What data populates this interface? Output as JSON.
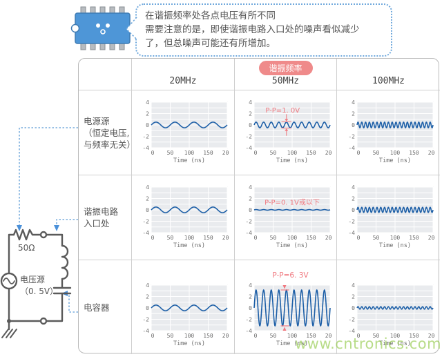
{
  "callout": {
    "lines": [
      "在谐振频率处各点电压有所不同",
      "需要注意的是，即使谐振电路入口处的噪声看似减少",
      "了，但总噪声可能还有所增加。"
    ]
  },
  "table": {
    "resonance_badge": "谐振频率",
    "columns": [
      "20MHz",
      "50MHz",
      "100MHz"
    ],
    "rows": [
      {
        "label_lines": [
          "电源源",
          "（恒定电压,",
          "与频率无关）"
        ]
      },
      {
        "label_lines": [
          "谐振电路",
          "入口处"
        ]
      },
      {
        "label_lines": [
          "电容器"
        ]
      }
    ]
  },
  "circuit": {
    "resistor_label": "50Ω",
    "source_label": "电压源",
    "source_value": "（0. 5V）"
  },
  "watermark": "www.cntronics.com",
  "colors": {
    "wave": "#1d5fa7",
    "plot_bg": "#e9ebee",
    "plot_border": "#d4d7dc",
    "annotation": "#f0787f",
    "badge_bg": "#ef8a8a",
    "accent_blue": "#5b9bd5",
    "chip_blue": "#4e96d7",
    "circuit_gray": "#5a5a5a"
  },
  "chart_data": {
    "type": "line",
    "xlabel": "Time (ns)",
    "x_range": [
      0,
      200
    ],
    "xticks": [
      0,
      50,
      100,
      150,
      200
    ],
    "ylim": [
      -4,
      4
    ],
    "yticks": [
      -4,
      -2,
      0,
      2,
      4
    ],
    "grid_minor_y_step": 1,
    "grid": true,
    "charts": [
      {
        "row": "电源源",
        "col": "20MHz",
        "freq_mhz": 20,
        "amplitude_v": 0.5
      },
      {
        "row": "电源源",
        "col": "50MHz",
        "freq_mhz": 50,
        "amplitude_v": 0.5,
        "annotation": "P-P=1. 0V",
        "annotation_style": "inside-arrows"
      },
      {
        "row": "电源源",
        "col": "100MHz",
        "freq_mhz": 100,
        "amplitude_v": 0.5
      },
      {
        "row": "谐振电路入口处",
        "col": "20MHz",
        "freq_mhz": 20,
        "amplitude_v": 0.5
      },
      {
        "row": "谐振电路入口处",
        "col": "50MHz",
        "freq_mhz": 50,
        "amplitude_v": 0.05,
        "annotation": "P-P=0. 1V或以下",
        "annotation_style": "inside-text"
      },
      {
        "row": "谐振电路入口处",
        "col": "100MHz",
        "freq_mhz": 100,
        "amplitude_v": 0.45
      },
      {
        "row": "电容器",
        "col": "20MHz",
        "freq_mhz": 20,
        "amplitude_v": 0.5
      },
      {
        "row": "电容器",
        "col": "50MHz",
        "freq_mhz": 50,
        "amplitude_v": 3.15,
        "annotation": "P-P=6. 3V",
        "annotation_style": "above-arrows"
      },
      {
        "row": "电容器",
        "col": "100MHz",
        "freq_mhz": 100,
        "amplitude_v": 0.22
      }
    ]
  }
}
